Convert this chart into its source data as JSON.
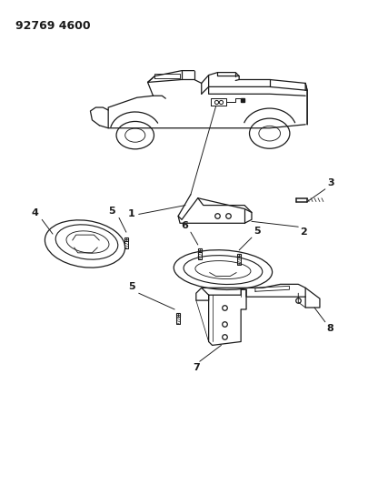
{
  "title_code": "92769 4600",
  "bg_color": "#ffffff",
  "line_color": "#1a1a1a",
  "fig_width": 4.06,
  "fig_height": 5.33,
  "dpi": 100
}
